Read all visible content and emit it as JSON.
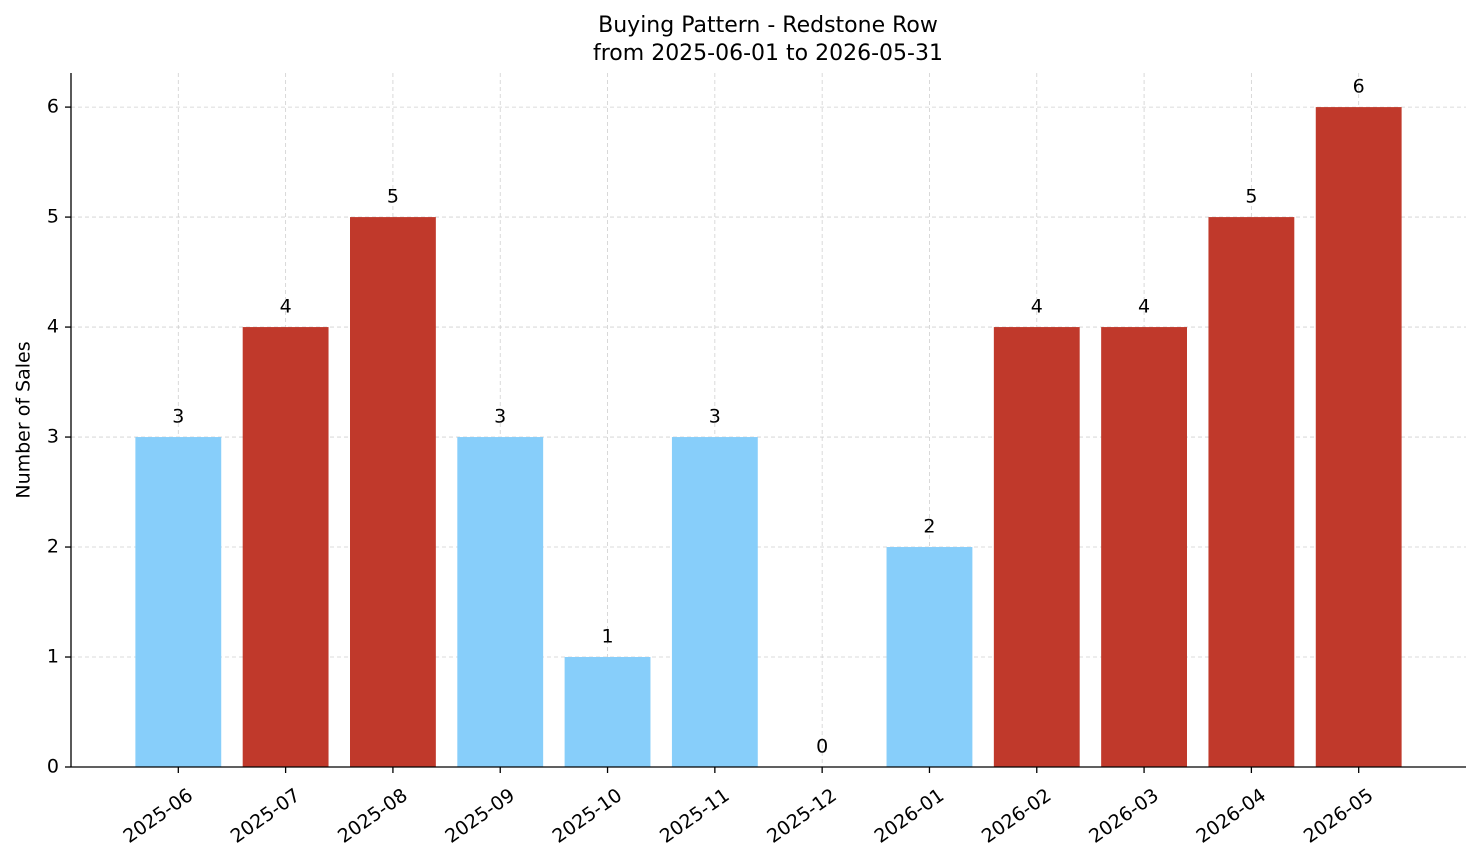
{
  "chart_data": {
    "type": "bar",
    "title": "Buying Pattern - Redstone Row",
    "subtitle": "from 2025-06-01 to 2026-05-31",
    "y_label": "Number of Sales",
    "categories": [
      "2025-06",
      "2025-07",
      "2025-08",
      "2025-09",
      "2025-10",
      "2025-11",
      "2025-12",
      "2026-01",
      "2026-02",
      "2026-03",
      "2026-04",
      "2026-05"
    ],
    "values": [
      3,
      4,
      5,
      3,
      1,
      3,
      0,
      2,
      4,
      4,
      5,
      6
    ],
    "colors": [
      "#87cefa",
      "#c0392b",
      "#c0392b",
      "#87cefa",
      "#87cefa",
      "#87cefa",
      "#87cefa",
      "#87cefa",
      "#c0392b",
      "#c0392b",
      "#c0392b",
      "#c0392b"
    ],
    "ylim": [
      0,
      6.31
    ],
    "yticks": [
      0,
      1,
      2,
      3,
      4,
      5,
      6
    ],
    "grid": true
  }
}
